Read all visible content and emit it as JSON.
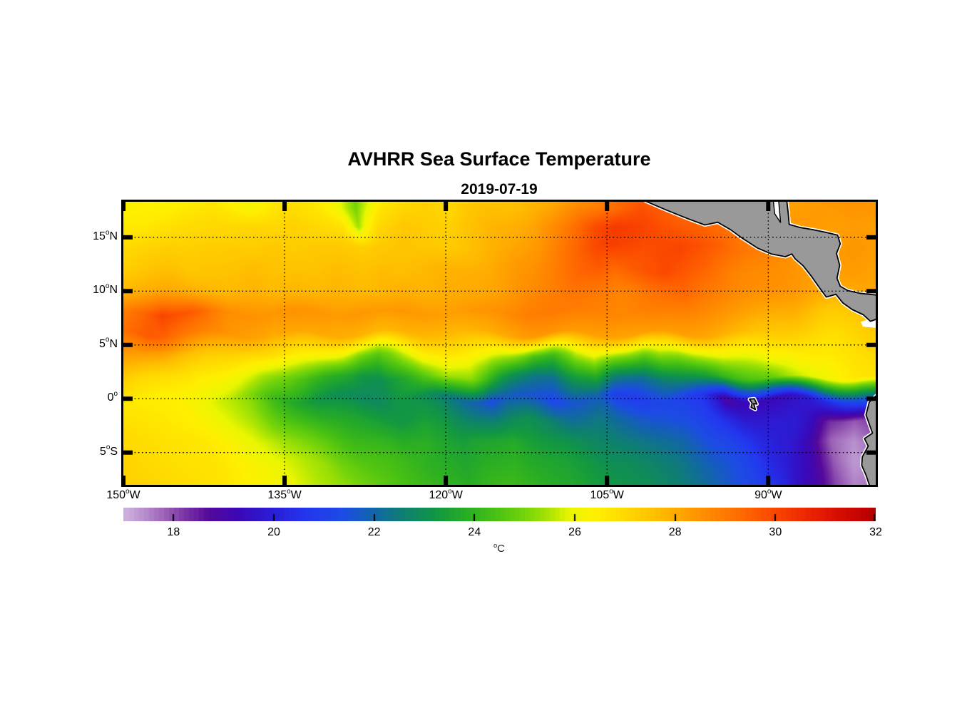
{
  "figure": {
    "title": "AVHRR Sea Surface Temperature",
    "subtitle": "2019-07-19"
  },
  "chart_data": {
    "type": "heatmap",
    "title": "AVHRR Sea Surface Temperature",
    "subtitle": "2019-07-19",
    "axes": {
      "lon_range": [
        -150,
        -80
      ],
      "lat_range": [
        18.3,
        -8.0
      ],
      "grid_on": true,
      "grid_style": "dotted",
      "deg_symbol": "o",
      "xticks": [
        {
          "deg": -150,
          "text": "150",
          "suffix": "W"
        },
        {
          "deg": -135,
          "text": "135",
          "suffix": "W"
        },
        {
          "deg": -120,
          "text": "120",
          "suffix": "W"
        },
        {
          "deg": -105,
          "text": "105",
          "suffix": "W"
        },
        {
          "deg": -90,
          "text": "90",
          "suffix": "W"
        }
      ],
      "yticks": [
        {
          "deg": 15,
          "text": "15",
          "suffix": "N"
        },
        {
          "deg": 10,
          "text": "10",
          "suffix": "N"
        },
        {
          "deg": 5,
          "text": "5",
          "suffix": "N"
        },
        {
          "deg": 0,
          "text": "0",
          "suffix": ""
        },
        {
          "deg": -5,
          "text": "5",
          "suffix": "S"
        }
      ]
    },
    "colorbar": {
      "range": [
        17,
        32
      ],
      "ticks": [
        18,
        20,
        22,
        24,
        26,
        28,
        30,
        32
      ],
      "unit_text": "C",
      "unit_deg": "o",
      "orientation": "horizontal",
      "step": 0.1
    },
    "colormap": {
      "domain": [
        17,
        32
      ],
      "stops": [
        [
          17.0,
          "#cfb3e0"
        ],
        [
          17.4,
          "#b78fcd"
        ],
        [
          17.8,
          "#9d63b8"
        ],
        [
          18.2,
          "#7a36a5"
        ],
        [
          18.7,
          "#55089a"
        ],
        [
          19.3,
          "#3a08b8"
        ],
        [
          20.0,
          "#2a1fd8"
        ],
        [
          20.7,
          "#2338f0"
        ],
        [
          21.4,
          "#1c4ce4"
        ],
        [
          22.0,
          "#1266a8"
        ],
        [
          22.6,
          "#0e8070"
        ],
        [
          23.2,
          "#119645"
        ],
        [
          23.8,
          "#27ac26"
        ],
        [
          24.4,
          "#48c013"
        ],
        [
          25.0,
          "#74d40a"
        ],
        [
          25.5,
          "#ace503"
        ],
        [
          25.9,
          "#eaf600"
        ],
        [
          26.4,
          "#fff000"
        ],
        [
          27.0,
          "#ffd900"
        ],
        [
          27.6,
          "#ffbf00"
        ],
        [
          28.1,
          "#ffa500"
        ],
        [
          28.7,
          "#ff8800"
        ],
        [
          29.3,
          "#ff6a00"
        ],
        [
          29.9,
          "#fb4900"
        ],
        [
          30.5,
          "#ef2c00"
        ],
        [
          31.1,
          "#dc1200"
        ],
        [
          31.6,
          "#c90500"
        ],
        [
          32.0,
          "#b00000"
        ]
      ]
    },
    "grid": {
      "lon0": -150,
      "dlon": 2,
      "lat0": 18,
      "dlat": 2,
      "lons": [
        -150,
        -148,
        -146,
        -144,
        -142,
        -140,
        -138,
        -136,
        -134,
        -132,
        -130,
        -128,
        -126,
        -124,
        -122,
        -120,
        -118,
        -116,
        -114,
        -112,
        -110,
        -108,
        -106,
        -104,
        -102,
        -100,
        -98,
        -96,
        -94,
        -92,
        -90,
        -88,
        -86,
        -84,
        -82,
        -80
      ],
      "lats": [
        18,
        16,
        14,
        12,
        10,
        8,
        6,
        4,
        2,
        0,
        -2,
        -4,
        -6,
        -8
      ],
      "sst": [
        [
          26.2,
          26.4,
          26.3,
          26.5,
          26.6,
          26.4,
          26.2,
          26.6,
          26.8,
          26.5,
          26.0,
          25.0,
          26.6,
          27.0,
          27.2,
          27.0,
          27.3,
          27.5,
          27.6,
          27.8,
          28.0,
          28.4,
          28.8,
          29.4,
          29.7,
          29.5,
          29.2,
          29.0,
          28.8,
          28.6,
          28.4,
          28.2,
          28.3,
          28.4,
          28.5,
          28.4
        ],
        [
          26.6,
          26.6,
          26.8,
          26.9,
          27.0,
          27.0,
          27.1,
          27.0,
          27.2,
          27.0,
          26.8,
          25.4,
          27.0,
          27.4,
          27.3,
          27.2,
          27.5,
          27.7,
          27.9,
          28.1,
          28.6,
          29.2,
          29.8,
          30.2,
          30.0,
          29.8,
          29.6,
          29.4,
          29.2,
          28.8,
          28.6,
          28.4,
          28.3,
          28.2,
          28.3,
          28.2
        ],
        [
          27.0,
          27.1,
          27.2,
          27.2,
          27.3,
          27.3,
          27.2,
          27.4,
          27.3,
          27.4,
          27.3,
          27.2,
          27.4,
          27.5,
          27.4,
          27.3,
          27.6,
          27.8,
          28.0,
          28.3,
          28.8,
          29.4,
          29.9,
          30.1,
          29.8,
          29.9,
          30.0,
          29.7,
          29.4,
          29.0,
          28.8,
          28.6,
          28.4,
          28.3,
          28.4,
          28.3
        ],
        [
          27.3,
          27.4,
          27.5,
          27.4,
          27.5,
          27.5,
          27.6,
          27.5,
          27.6,
          27.5,
          27.6,
          27.5,
          27.7,
          27.6,
          27.7,
          27.8,
          27.9,
          28.0,
          28.2,
          28.5,
          28.9,
          29.3,
          29.6,
          29.4,
          29.6,
          29.9,
          29.7,
          29.5,
          29.0,
          28.7,
          28.6,
          28.5,
          28.3,
          28.2,
          28.3,
          28.2
        ],
        [
          27.8,
          27.9,
          28.0,
          27.9,
          27.8,
          27.7,
          27.8,
          27.7,
          27.8,
          27.7,
          27.8,
          27.7,
          27.8,
          27.9,
          27.8,
          27.9,
          28.0,
          28.1,
          28.3,
          28.6,
          28.9,
          29.1,
          29.0,
          28.8,
          28.9,
          29.2,
          29.4,
          29.1,
          28.8,
          28.6,
          28.5,
          28.4,
          28.2,
          27.9,
          28.0,
          28.1
        ],
        [
          28.9,
          29.4,
          30.0,
          29.6,
          29.0,
          28.6,
          28.5,
          28.4,
          28.5,
          28.4,
          28.3,
          28.4,
          28.3,
          28.4,
          28.3,
          28.2,
          28.3,
          28.5,
          28.7,
          28.9,
          29.0,
          28.9,
          28.8,
          28.7,
          28.8,
          28.9,
          28.8,
          28.6,
          28.4,
          28.2,
          28.0,
          27.8,
          27.5,
          27.3,
          27.4,
          27.6
        ],
        [
          29.2,
          29.6,
          29.4,
          29.0,
          28.7,
          28.4,
          28.2,
          28.0,
          28.1,
          28.0,
          27.9,
          27.8,
          27.7,
          27.8,
          27.7,
          27.6,
          27.7,
          27.9,
          28.1,
          28.3,
          28.4,
          28.3,
          28.2,
          28.1,
          28.2,
          28.3,
          28.2,
          28.0,
          27.8,
          27.6,
          27.4,
          27.2,
          27.0,
          26.9,
          27.1,
          27.3
        ],
        [
          28.3,
          28.1,
          27.9,
          27.6,
          27.3,
          27.1,
          26.9,
          26.8,
          26.6,
          26.3,
          25.8,
          25.0,
          24.6,
          25.6,
          26.3,
          26.6,
          26.5,
          26.2,
          25.4,
          24.4,
          24.2,
          25.6,
          26.0,
          25.2,
          24.8,
          25.4,
          25.2,
          25.6,
          26.0,
          26.1,
          26.3,
          26.2,
          26.5,
          26.6,
          26.8,
          27.0
        ],
        [
          27.2,
          27.0,
          26.9,
          26.7,
          26.4,
          26.2,
          25.8,
          25.2,
          24.6,
          24.2,
          23.8,
          23.2,
          23.0,
          23.6,
          24.6,
          25.4,
          25.2,
          24.2,
          23.2,
          22.4,
          22.2,
          23.2,
          23.8,
          22.8,
          22.2,
          22.6,
          23.0,
          23.4,
          24.0,
          24.4,
          24.8,
          25.4,
          25.8,
          26.2,
          26.6,
          26.8
        ],
        [
          26.6,
          26.5,
          26.4,
          26.2,
          26.0,
          25.6,
          25.0,
          24.2,
          23.6,
          23.2,
          23.0,
          22.8,
          22.9,
          23.2,
          23.0,
          22.6,
          22.0,
          21.4,
          21.8,
          21.6,
          21.2,
          21.6,
          21.8,
          21.0,
          20.8,
          21.2,
          21.0,
          20.6,
          18.9,
          19.2,
          19.3,
          19.5,
          19.9,
          20.5,
          21.5,
          22.3
        ],
        [
          26.8,
          26.7,
          26.6,
          26.4,
          26.2,
          25.9,
          25.4,
          24.8,
          24.4,
          24.0,
          23.8,
          23.6,
          23.4,
          23.2,
          23.4,
          23.2,
          22.8,
          22.6,
          22.8,
          23.0,
          22.6,
          22.2,
          22.4,
          22.0,
          21.8,
          21.6,
          21.4,
          21.0,
          20.4,
          19.9,
          19.8,
          19.9,
          19.5,
          18.3,
          17.9,
          18.2
        ],
        [
          27.0,
          26.9,
          26.8,
          26.7,
          26.5,
          26.3,
          26.0,
          25.6,
          25.2,
          24.8,
          24.5,
          24.2,
          24.0,
          23.8,
          23.9,
          23.6,
          23.4,
          23.6,
          23.8,
          23.5,
          23.2,
          23.0,
          22.8,
          22.6,
          22.4,
          22.2,
          22.0,
          21.6,
          21.2,
          20.6,
          20.2,
          19.8,
          18.9,
          17.8,
          17.4,
          17.8
        ],
        [
          27.1,
          27.0,
          26.9,
          26.8,
          26.7,
          26.5,
          26.3,
          26.0,
          25.7,
          25.4,
          25.0,
          24.7,
          24.4,
          24.2,
          24.0,
          23.8,
          23.6,
          23.8,
          24.0,
          23.8,
          23.6,
          23.4,
          23.2,
          23.0,
          22.8,
          22.6,
          22.4,
          22.0,
          21.6,
          21.0,
          20.4,
          20.0,
          19.0,
          17.9,
          17.3,
          17.5
        ],
        [
          27.2,
          27.1,
          27.0,
          26.9,
          26.8,
          26.6,
          26.4,
          26.2,
          25.9,
          25.6,
          25.3,
          25.0,
          24.7,
          24.4,
          24.2,
          24.0,
          23.8,
          24.0,
          24.2,
          24.0,
          23.8,
          23.6,
          23.4,
          23.2,
          23.0,
          22.8,
          22.6,
          22.2,
          21.8,
          21.2,
          20.6,
          20.2,
          19.2,
          18.1,
          17.5,
          17.7
        ]
      ]
    },
    "land": {
      "fill": "#999999",
      "coast_stroke": "#000000",
      "coast_fringe": "#ffffff",
      "polygons": [
        {
          "name": "central-america",
          "pts": [
            [
              -101.4,
              18.6
            ],
            [
              -101.4,
              18.35
            ],
            [
              -99.4,
              17.5
            ],
            [
              -97.4,
              16.7
            ],
            [
              -95.9,
              16.15
            ],
            [
              -94.7,
              16.4
            ],
            [
              -93.5,
              15.7
            ],
            [
              -92.4,
              14.9
            ],
            [
              -91.0,
              14.0
            ],
            [
              -89.7,
              13.45
            ],
            [
              -88.4,
              13.2
            ],
            [
              -87.8,
              13.45
            ],
            [
              -87.5,
              13.0
            ],
            [
              -86.75,
              12.35
            ],
            [
              -86.0,
              11.4
            ],
            [
              -85.4,
              10.55
            ],
            [
              -85.0,
              10.0
            ],
            [
              -84.6,
              9.45
            ],
            [
              -83.7,
              9.7
            ],
            [
              -83.05,
              8.9
            ],
            [
              -82.2,
              8.3
            ],
            [
              -81.15,
              7.8
            ],
            [
              -80.5,
              7.2
            ],
            [
              -79.6,
              7.5
            ],
            [
              -79.6,
              9.6
            ],
            [
              -81.5,
              9.8
            ],
            [
              -82.6,
              10.05
            ],
            [
              -83.3,
              10.45
            ],
            [
              -83.6,
              11.2
            ],
            [
              -83.35,
              12.4
            ],
            [
              -83.65,
              13.5
            ],
            [
              -83.3,
              14.4
            ],
            [
              -83.55,
              15.2
            ],
            [
              -84.6,
              15.45
            ],
            [
              -85.8,
              15.7
            ],
            [
              -87.0,
              15.9
            ],
            [
              -88.05,
              16.2
            ],
            [
              -88.15,
              17.3
            ],
            [
              -88.3,
              18.6
            ]
          ]
        },
        {
          "name": "south-america",
          "pts": [
            [
              -79.6,
              0.6
            ],
            [
              -80.6,
              -0.3
            ],
            [
              -80.9,
              -1.5
            ],
            [
              -80.55,
              -2.5
            ],
            [
              -80.3,
              -3.2
            ],
            [
              -81.05,
              -3.7
            ],
            [
              -80.7,
              -4.4
            ],
            [
              -81.25,
              -5.4
            ],
            [
              -81.3,
              -6.2
            ],
            [
              -80.9,
              -7.1
            ],
            [
              -80.5,
              -8.3
            ],
            [
              -79.6,
              -8.3
            ]
          ]
        },
        {
          "name": "galapagos-islands",
          "pts": [
            [
              -91.75,
              -0.05
            ],
            [
              -91.3,
              0.0
            ],
            [
              -91.05,
              -0.5
            ],
            [
              -91.35,
              -0.45
            ],
            [
              -91.2,
              -1.0
            ],
            [
              -91.6,
              -0.8
            ],
            [
              -91.5,
              -0.4
            ]
          ]
        }
      ],
      "white_patches": [
        {
          "name": "gulf-of-honduras-inlet",
          "stroke": true,
          "pts": [
            [
              -89.55,
              18.6
            ],
            [
              -89.05,
              18.6
            ],
            [
              -88.85,
              16.35
            ],
            [
              -89.4,
              17.2
            ]
          ]
        },
        {
          "name": "panama-bight-missing-data",
          "stroke": false,
          "pts": [
            [
              -81.4,
              7.15
            ],
            [
              -80.5,
              7.4
            ],
            [
              -79.6,
              7.25
            ],
            [
              -79.6,
              6.55
            ],
            [
              -81.2,
              6.7
            ]
          ]
        }
      ]
    }
  }
}
